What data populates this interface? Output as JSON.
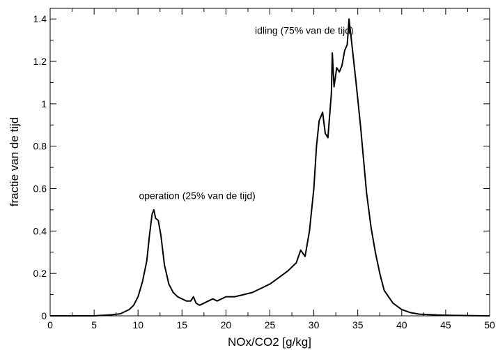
{
  "chart_data": {
    "type": "line",
    "title": "",
    "xlabel": "NOx/CO2 [g/kg]",
    "ylabel": "fractie van de tijd",
    "xlim": [
      0,
      50
    ],
    "ylim": [
      0,
      1.45
    ],
    "xticks": [
      0,
      5,
      10,
      15,
      20,
      25,
      30,
      35,
      40,
      45,
      50
    ],
    "yticks": [
      0,
      0.2,
      0.4,
      0.6,
      0.8,
      1,
      1.2,
      1.4
    ],
    "xtick_labels": [
      "0",
      "5",
      "10",
      "15",
      "20",
      "25",
      "30",
      "35",
      "40",
      "45",
      "50"
    ],
    "ytick_labels": [
      "0",
      "0.2",
      "0.4",
      "0.6",
      "0.8",
      "1",
      "1.2",
      "1.4"
    ],
    "grid": false,
    "annotations": [
      {
        "text": "operation (25% van de tijd)",
        "x": 10.1,
        "y": 0.55
      },
      {
        "text": "idling (75% van de tijd)",
        "x": 23.3,
        "y": 1.33
      }
    ],
    "series": [
      {
        "color": "#000000",
        "x": [
          0,
          5,
          7,
          8,
          9,
          9.5,
          10,
          10.5,
          11,
          11.3,
          11.6,
          11.8,
          12,
          12.3,
          12.6,
          13,
          13.5,
          14,
          14.5,
          15,
          15.5,
          16,
          16.3,
          16.6,
          17,
          17.5,
          18,
          18.5,
          19,
          20,
          21,
          22,
          23,
          24,
          25,
          26,
          27,
          28,
          28.5,
          29,
          29.5,
          30,
          30.3,
          30.6,
          31,
          31.3,
          31.6,
          32,
          32.1,
          32.3,
          32.6,
          32.9,
          33.2,
          33.5,
          33.8,
          34.0,
          34.3,
          34.8,
          35.3,
          36,
          36.5,
          37,
          37.5,
          38,
          39,
          40,
          41,
          42,
          44,
          46,
          48,
          50
        ],
        "y": [
          0,
          0,
          0.005,
          0.01,
          0.03,
          0.05,
          0.09,
          0.16,
          0.26,
          0.38,
          0.48,
          0.5,
          0.46,
          0.45,
          0.38,
          0.24,
          0.15,
          0.11,
          0.09,
          0.08,
          0.07,
          0.07,
          0.09,
          0.06,
          0.05,
          0.06,
          0.07,
          0.08,
          0.07,
          0.09,
          0.09,
          0.1,
          0.11,
          0.13,
          0.15,
          0.18,
          0.21,
          0.25,
          0.31,
          0.28,
          0.4,
          0.6,
          0.8,
          0.92,
          0.96,
          0.86,
          0.84,
          1.05,
          1.24,
          1.08,
          1.17,
          1.15,
          1.18,
          1.25,
          1.28,
          1.4,
          1.29,
          1.1,
          0.9,
          0.58,
          0.42,
          0.3,
          0.2,
          0.12,
          0.06,
          0.03,
          0.015,
          0.008,
          0.004,
          0.002,
          0.001,
          0
        ]
      }
    ]
  }
}
